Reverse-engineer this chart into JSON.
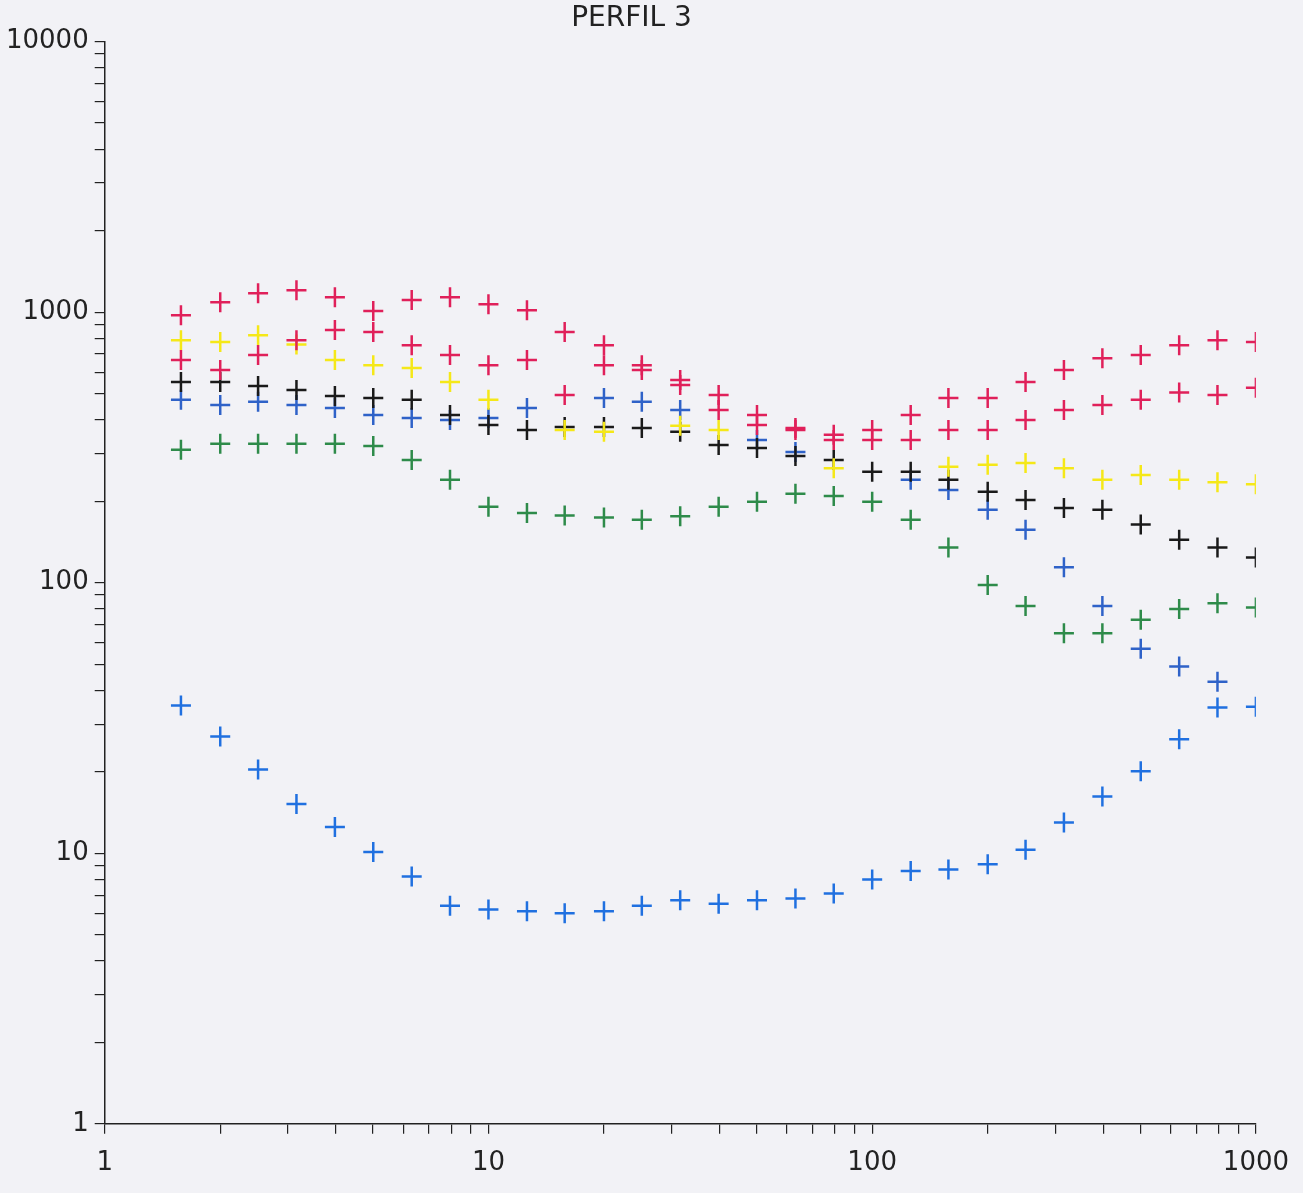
{
  "chart_data": {
    "type": "scatter",
    "title": "PERFIL 3",
    "log": "xy",
    "grid": false,
    "legend": false,
    "marker": "cross",
    "x": [
      1.58,
      2,
      2.51,
      3.16,
      3.98,
      5.01,
      6.31,
      7.94,
      10,
      12.6,
      15.8,
      20,
      25.1,
      31.6,
      39.8,
      50.1,
      63.1,
      79.4,
      100,
      126,
      158,
      200,
      251,
      316,
      398,
      501,
      631,
      794,
      1000
    ],
    "xlim": [
      1,
      1000
    ],
    "xticks": [
      1,
      {
        "value": 2,
        "label": null
      },
      {
        "value": 3,
        "label": null
      },
      {
        "value": 4,
        "label": null
      },
      {
        "value": 5,
        "label": null
      },
      {
        "value": 6,
        "label": null
      },
      {
        "value": 7,
        "label": null
      },
      {
        "value": 8,
        "label": null
      },
      {
        "value": 9,
        "label": null
      },
      10,
      {
        "value": 20,
        "label": null
      },
      {
        "value": 30,
        "label": null
      },
      {
        "value": 40,
        "label": null
      },
      {
        "value": 50,
        "label": null
      },
      {
        "value": 60,
        "label": null
      },
      {
        "value": 70,
        "label": null
      },
      {
        "value": 80,
        "label": null
      },
      {
        "value": 90,
        "label": null
      },
      100,
      {
        "value": 200,
        "label": null
      },
      {
        "value": 300,
        "label": null
      },
      {
        "value": 400,
        "label": null
      },
      {
        "value": 500,
        "label": null
      },
      {
        "value": 600,
        "label": null
      },
      {
        "value": 700,
        "label": null
      },
      {
        "value": 800,
        "label": null
      },
      {
        "value": 900,
        "label": null
      },
      1000
    ],
    "ylim": [
      1,
      10000
    ],
    "yticks": [
      1,
      {
        "value": 2,
        "label": null
      },
      {
        "value": 3,
        "label": null
      },
      {
        "value": 4,
        "label": null
      },
      {
        "value": 5,
        "label": null
      },
      {
        "value": 6,
        "label": null
      },
      {
        "value": 7,
        "label": null
      },
      {
        "value": 8,
        "label": null
      },
      {
        "value": 9,
        "label": null
      },
      10,
      {
        "value": 20,
        "label": null
      },
      {
        "value": 30,
        "label": null
      },
      {
        "value": 40,
        "label": null
      },
      {
        "value": 50,
        "label": null
      },
      {
        "value": 60,
        "label": null
      },
      {
        "value": 70,
        "label": null
      },
      {
        "value": 80,
        "label": null
      },
      {
        "value": 90,
        "label": null
      },
      100,
      {
        "value": 200,
        "label": null
      },
      {
        "value": 300,
        "label": null
      },
      {
        "value": 400,
        "label": null
      },
      {
        "value": 500,
        "label": null
      },
      {
        "value": 600,
        "label": null
      },
      {
        "value": 700,
        "label": null
      },
      {
        "value": 800,
        "label": null
      },
      {
        "value": 900,
        "label": null
      },
      1000,
      {
        "value": 2000,
        "label": null
      },
      {
        "value": 3000,
        "label": null
      },
      {
        "value": 4000,
        "label": null
      },
      {
        "value": 5000,
        "label": null
      },
      {
        "value": 6000,
        "label": null
      },
      {
        "value": 7000,
        "label": null
      },
      {
        "value": 8000,
        "label": null
      },
      {
        "value": 9000,
        "label": null
      },
      10000
    ],
    "series": [
      {
        "color": "#e0205a",
        "values": [
          975,
          1089,
          1175,
          1206,
          1136,
          1009,
          1108,
          1136,
          1070,
          1017,
          844,
          755,
          637,
          561,
          494,
          417,
          373,
          352,
          367,
          417,
          482,
          482,
          552,
          611,
          676,
          694,
          755,
          788,
          775
        ]
      },
      {
        "color": "#e0205a",
        "values": [
          665,
          611,
          694,
          788,
          859,
          844,
          755,
          694,
          637,
          665,
          494,
          637,
          611,
          538,
          435,
          383,
          367,
          337,
          337,
          337,
          367,
          367,
          399,
          435,
          454,
          474,
          505,
          494,
          525
        ]
      },
      {
        "color": "#f5e818",
        "values": [
          788,
          775,
          822,
          760,
          665,
          637,
          622,
          552,
          474,
          null,
          367,
          361,
          null,
          380,
          367,
          null,
          null,
          265,
          null,
          null,
          268,
          273,
          277,
          265,
          240,
          250,
          240,
          235,
          231
        ]
      },
      {
        "color": "#1a1a1a",
        "values": [
          552,
          552,
          533,
          515,
          490,
          482,
          474,
          417,
          383,
          367,
          376,
          376,
          373,
          361,
          323,
          315,
          294,
          284,
          257,
          257,
          240,
          217,
          202,
          189,
          186,
          164,
          144,
          135,
          124
        ]
      },
      {
        "color": "#2f62c8",
        "values": [
          474,
          454,
          466,
          454,
          442,
          417,
          406,
          399,
          406,
          442,
          null,
          482,
          466,
          435,
          null,
          337,
          304,
          null,
          null,
          240,
          220,
          186,
          157,
          114,
          82,
          57,
          49,
          43,
          null
        ]
      },
      {
        "color": "#2e8b4a",
        "values": [
          310,
          326,
          326,
          326,
          326,
          320,
          284,
          240,
          191,
          181,
          177,
          174,
          171,
          176,
          191,
          199,
          213,
          209,
          199,
          171,
          135,
          98,
          82,
          65,
          65,
          73,
          80,
          84,
          81
        ]
      },
      {
        "color": "#2070e0",
        "values": [
          35.2,
          27.0,
          20.4,
          15.2,
          12.5,
          10.1,
          8.2,
          6.4,
          6.2,
          6.1,
          6.0,
          6.1,
          6.4,
          6.7,
          6.5,
          6.7,
          6.8,
          7.1,
          8.0,
          8.6,
          8.7,
          9.1,
          10.3,
          13.0,
          16.2,
          20.1,
          26.4,
          34.6,
          34.8
        ]
      }
    ]
  }
}
